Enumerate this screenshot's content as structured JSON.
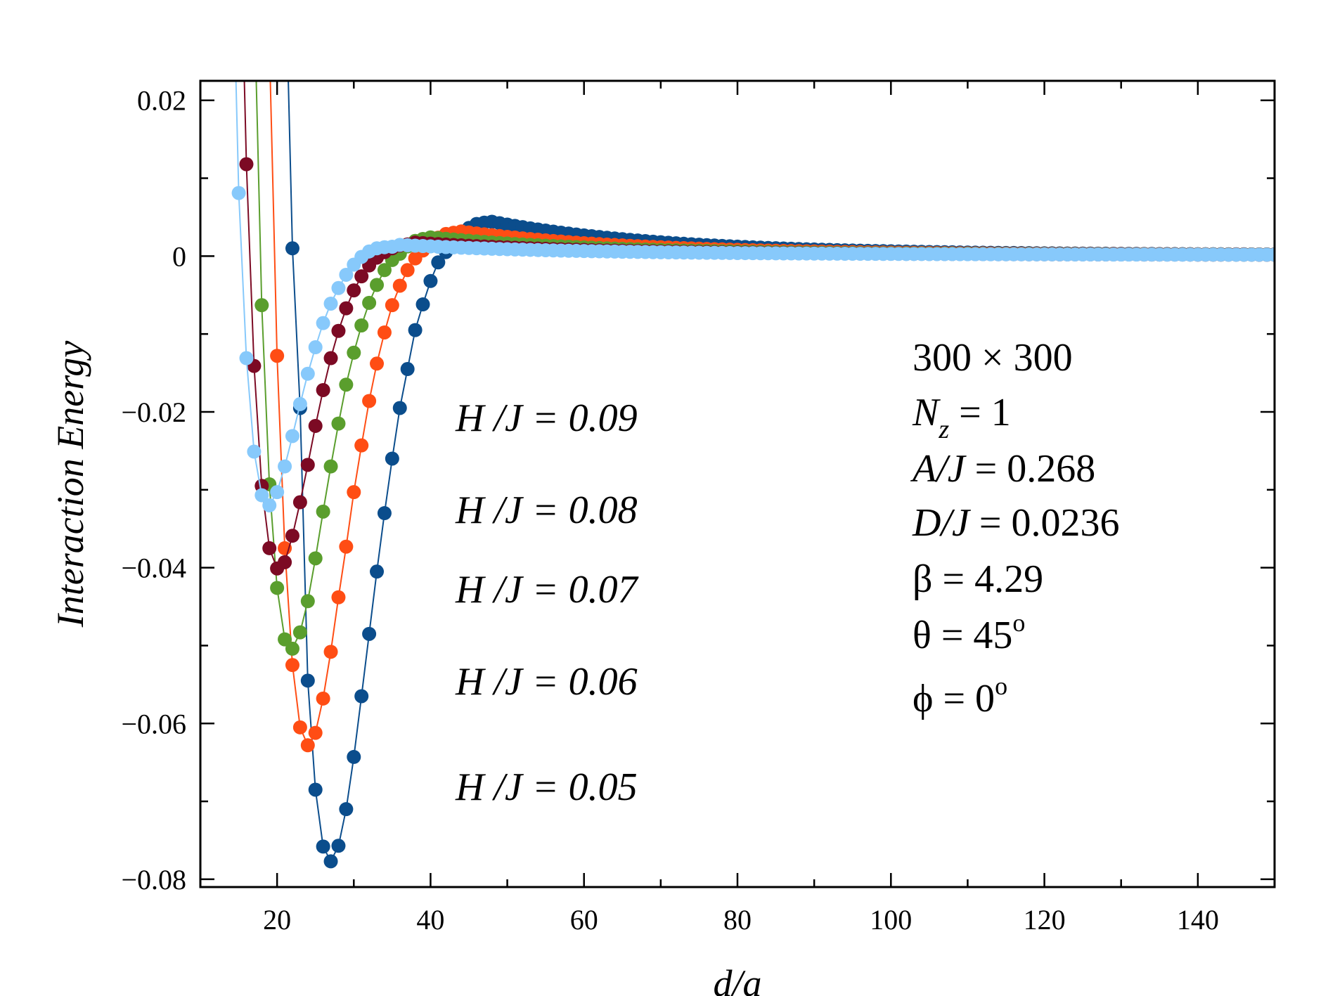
{
  "chart_data": {
    "type": "scatter",
    "xlabel": "d/a",
    "ylabel": "Interaction Energy",
    "xlim": [
      10,
      150
    ],
    "ylim": [
      -0.081,
      0.0225
    ],
    "xticks": [
      20,
      40,
      60,
      80,
      100,
      120,
      140
    ],
    "xtick_labels": [
      "20",
      "40",
      "60",
      "80",
      "100",
      "120",
      "140"
    ],
    "yticks": [
      0.02,
      0,
      -0.02,
      -0.04,
      -0.06,
      -0.08
    ],
    "ytick_labels": [
      "0.02",
      "0",
      "−0.02",
      "−0.04",
      "−0.06",
      "−0.08"
    ],
    "series": [
      {
        "name": "H/J = 0.05",
        "color": "#0b4d8c",
        "x": [
          22,
          23,
          24,
          25,
          26,
          27,
          28,
          29,
          30,
          31,
          32,
          33,
          34,
          35,
          36,
          37,
          38,
          39,
          40,
          41
        ],
        "y": [
          0.001,
          -0.0195,
          -0.0545,
          -0.0685,
          -0.0758,
          -0.0777,
          -0.0757,
          -0.071,
          -0.0643,
          -0.0565,
          -0.0485,
          -0.0405,
          -0.033,
          -0.026,
          -0.0195,
          -0.0145,
          -0.0095,
          -0.0062,
          -0.0032,
          -0.0008
        ],
        "tail_peak": 0.0043,
        "tail_peak_x": 47
      },
      {
        "name": "H/J = 0.06",
        "color": "#ff4d14",
        "x": [
          20,
          21,
          22,
          23,
          24,
          25,
          26,
          27,
          28,
          29,
          30,
          31,
          32,
          33,
          34,
          35,
          36,
          37,
          38
        ],
        "y": [
          -0.0128,
          -0.0375,
          -0.0525,
          -0.0605,
          -0.0628,
          -0.0612,
          -0.0568,
          -0.0508,
          -0.0438,
          -0.0373,
          -0.0303,
          -0.0243,
          -0.0186,
          -0.0138,
          -0.0098,
          -0.0063,
          -0.0038,
          -0.0018,
          -0.0003
        ],
        "tail_peak": 0.003,
        "tail_peak_x": 43
      },
      {
        "name": "H/J = 0.07",
        "color": "#5a9e2d",
        "x": [
          18,
          19,
          20,
          21,
          22,
          23,
          24,
          25,
          26,
          27,
          28,
          29,
          30,
          31,
          32,
          33,
          34,
          35,
          36
        ],
        "y": [
          -0.0063,
          -0.0293,
          -0.0426,
          -0.0492,
          -0.0504,
          -0.0483,
          -0.0443,
          -0.0388,
          -0.0328,
          -0.027,
          -0.0215,
          -0.0165,
          -0.0124,
          -0.0089,
          -0.006,
          -0.0037,
          -0.0018,
          -0.0005,
          0.0003
        ],
        "tail_peak": 0.0022,
        "tail_peak_x": 39
      },
      {
        "name": "H/J = 0.08",
        "color": "#7c0a24",
        "x": [
          16,
          17,
          18,
          19,
          20,
          21,
          22,
          23,
          24,
          25,
          26,
          27,
          28,
          29,
          30,
          31,
          32,
          33,
          34
        ],
        "y": [
          0.0118,
          -0.0141,
          -0.0295,
          -0.0375,
          -0.0401,
          -0.0393,
          -0.0359,
          -0.0316,
          -0.0268,
          -0.0218,
          -0.0172,
          -0.0131,
          -0.0096,
          -0.0067,
          -0.0044,
          -0.0026,
          -0.0012,
          -0.0002,
          0.0005
        ],
        "tail_peak": 0.0015,
        "tail_peak_x": 37
      },
      {
        "name": "H/J = 0.09",
        "color": "#87c9fb",
        "x": [
          15,
          16,
          17,
          18,
          19,
          20,
          21,
          22,
          23,
          24,
          25,
          26,
          27,
          28,
          29,
          30,
          31,
          32,
          33
        ],
        "y": [
          0.0081,
          -0.0131,
          -0.0251,
          -0.0307,
          -0.032,
          -0.0303,
          -0.027,
          -0.0231,
          -0.019,
          -0.0151,
          -0.0117,
          -0.0086,
          -0.0061,
          -0.0041,
          -0.0024,
          -0.0011,
          -0.0001,
          0.0006,
          0.001
        ],
        "tail_peak": 0.0012,
        "tail_peak_x": 35
      }
    ]
  },
  "legend_labels": [
    {
      "series": "0.09",
      "text": "H /J  = 0.09",
      "color": "#87c9fb"
    },
    {
      "series": "0.08",
      "text": "H /J  = 0.08",
      "color": "#7c0a24"
    },
    {
      "series": "0.07",
      "text": "H /J  = 0.07",
      "color": "#5a9e2d"
    },
    {
      "series": "0.06",
      "text": "H /J  = 0.06",
      "color": "#ff4d14"
    },
    {
      "series": "0.05",
      "text": "H /J  = 0.05",
      "color": "#0b4d8c"
    }
  ],
  "params": {
    "lattice": "300 × 300",
    "nz_sym": "N",
    "nz_sub": "z",
    "nz_val": " = 1",
    "a_lbl": "A/J",
    "a_val": "  = 0.268",
    "d_lbl": "D/J",
    "d_val": " =  0.0236",
    "beta": "β = 4.29",
    "theta_txt": "θ = 45",
    "theta_sup": "o",
    "phi_txt": "ϕ = 0",
    "phi_sup": "o"
  }
}
